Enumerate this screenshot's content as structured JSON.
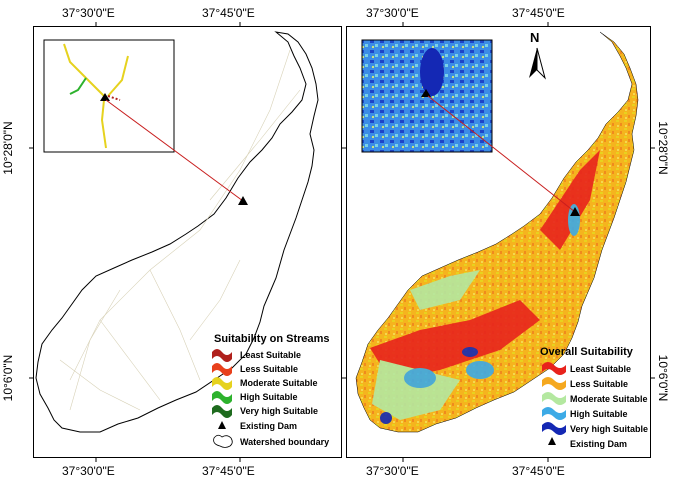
{
  "left_map": {
    "top_ticks": [
      "37°30'0\"E",
      "37°45'0\"E"
    ],
    "bottom_ticks": [
      "37°30'0\"E",
      "37°45'0\"E"
    ],
    "left_ticks": [
      "10°28'0\"N",
      "10°6'0\"N"
    ],
    "legend": {
      "title": "Suitability on Streams",
      "items": [
        {
          "label": "Least Suitable",
          "color": "#b0201c"
        },
        {
          "label": "Less Suitable",
          "color": "#e8401c"
        },
        {
          "label": "Moderate Suitable",
          "color": "#e6d21e"
        },
        {
          "label": "High Suitable",
          "color": "#2db22d"
        },
        {
          "label": "Very high Suitable",
          "color": "#1e6b1e"
        },
        {
          "label": "Existing Dam",
          "icon": "triangle-icon"
        },
        {
          "label": "Watershed boundary",
          "icon": "polygon-outline-icon"
        }
      ]
    }
  },
  "right_map": {
    "top_ticks": [
      "37°30'0\"E",
      "37°45'0\"E"
    ],
    "bottom_ticks": [
      "37°30'0\"E",
      "37°45'0\"E"
    ],
    "right_ticks": [
      "10°28'0\"N",
      "10°6'0\"N"
    ],
    "north_label": "N",
    "legend": {
      "title": "Overall Suitability",
      "items": [
        {
          "label": "Least Suitable",
          "color": "#e8231c"
        },
        {
          "label": "Less Suitable",
          "color": "#f5a81e"
        },
        {
          "label": "Moderate Suitable",
          "color": "#b4e8a0"
        },
        {
          "label": "High Suitable",
          "color": "#3caae6"
        },
        {
          "label": "Very high Suitable",
          "color": "#1428b4"
        },
        {
          "label": "Existing Dam",
          "icon": "triangle-icon"
        }
      ]
    }
  }
}
